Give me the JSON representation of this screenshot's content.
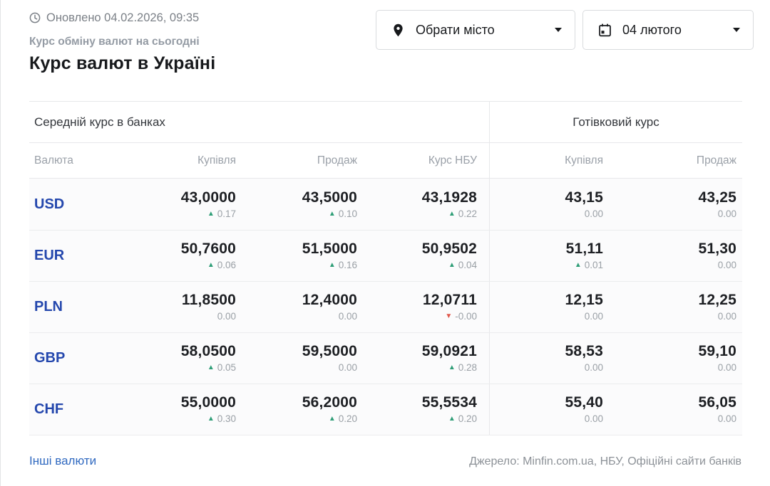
{
  "header": {
    "updated": "Оновлено 04.02.2026, 09:35",
    "subtitle": "Курс обміну валют на сьогодні",
    "title": "Курс валют в Україні",
    "city_selector": {
      "label": "Обрати місто"
    },
    "date_selector": {
      "label": "04 лютого"
    }
  },
  "table": {
    "group_headers": {
      "bank": "Середній курс в банках",
      "cash": "Готівковий курс"
    },
    "columns": [
      "Валюта",
      "Купівля",
      "Продаж",
      "Курс НБУ",
      "Купівля",
      "Продаж"
    ],
    "rows": [
      {
        "code": "USD",
        "cells": [
          {
            "value": "43,0000",
            "dir": "up",
            "change": "0.17"
          },
          {
            "value": "43,5000",
            "dir": "up",
            "change": "0.10"
          },
          {
            "value": "43,1928",
            "dir": "up",
            "change": "0.22"
          },
          {
            "value": "43,15",
            "dir": "flat",
            "change": "0.00"
          },
          {
            "value": "43,25",
            "dir": "flat",
            "change": "0.00"
          }
        ]
      },
      {
        "code": "EUR",
        "cells": [
          {
            "value": "50,7600",
            "dir": "up",
            "change": "0.06"
          },
          {
            "value": "51,5000",
            "dir": "up",
            "change": "0.16"
          },
          {
            "value": "50,9502",
            "dir": "up",
            "change": "0.04"
          },
          {
            "value": "51,11",
            "dir": "up",
            "change": "0.01"
          },
          {
            "value": "51,30",
            "dir": "flat",
            "change": "0.00"
          }
        ]
      },
      {
        "code": "PLN",
        "cells": [
          {
            "value": "11,8500",
            "dir": "flat",
            "change": "0.00"
          },
          {
            "value": "12,4000",
            "dir": "flat",
            "change": "0.00"
          },
          {
            "value": "12,0711",
            "dir": "down",
            "change": "-0.00"
          },
          {
            "value": "12,15",
            "dir": "flat",
            "change": "0.00"
          },
          {
            "value": "12,25",
            "dir": "flat",
            "change": "0.00"
          }
        ]
      },
      {
        "code": "GBP",
        "cells": [
          {
            "value": "58,0500",
            "dir": "up",
            "change": "0.05"
          },
          {
            "value": "59,5000",
            "dir": "flat",
            "change": "0.00"
          },
          {
            "value": "59,0921",
            "dir": "up",
            "change": "0.28"
          },
          {
            "value": "58,53",
            "dir": "flat",
            "change": "0.00"
          },
          {
            "value": "59,10",
            "dir": "flat",
            "change": "0.00"
          }
        ]
      },
      {
        "code": "CHF",
        "cells": [
          {
            "value": "55,0000",
            "dir": "up",
            "change": "0.30"
          },
          {
            "value": "56,2000",
            "dir": "up",
            "change": "0.20"
          },
          {
            "value": "55,5534",
            "dir": "up",
            "change": "0.20"
          },
          {
            "value": "55,40",
            "dir": "flat",
            "change": "0.00"
          },
          {
            "value": "56,05",
            "dir": "flat",
            "change": "0.00"
          }
        ]
      }
    ]
  },
  "footer": {
    "other_currencies": "Інші валюти",
    "source": "Джерело: Minfin.com.ua, НБУ, Офіційні сайти банків"
  },
  "colors": {
    "currency_link_blue": "#2447ad",
    "footer_link_blue": "#3069c0",
    "up_green": "#2f9e77",
    "down_red": "#e0564a",
    "muted_gray": "#9aa0a6"
  }
}
